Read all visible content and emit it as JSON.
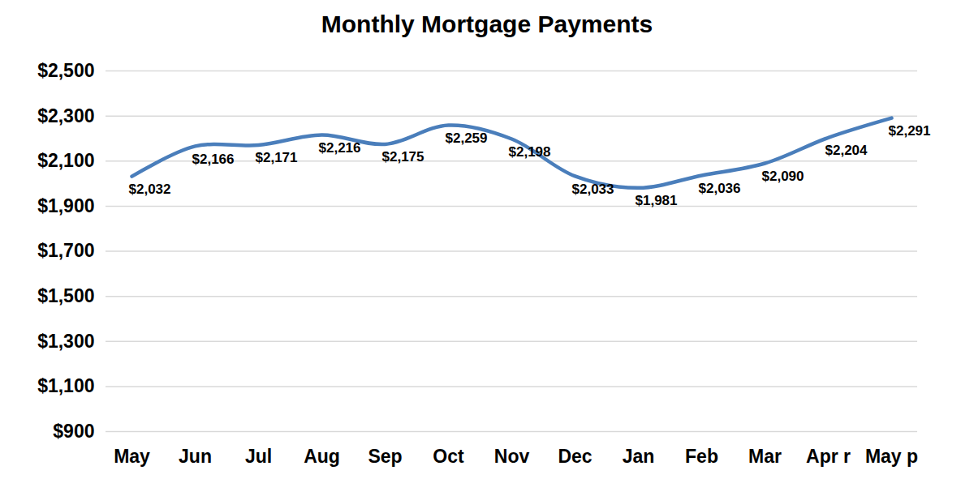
{
  "chart_data": {
    "type": "line",
    "title": "Monthly Mortgage Payments",
    "categories": [
      "May",
      "Jun",
      "Jul",
      "Aug",
      "Sep",
      "Oct",
      "Nov",
      "Dec",
      "Jan",
      "Feb",
      "Mar",
      "Apr r",
      "May p"
    ],
    "values": [
      2032,
      2166,
      2171,
      2216,
      2175,
      2259,
      2198,
      2033,
      1981,
      2036,
      2090,
      2204,
      2291
    ],
    "value_labels": [
      "$2,032",
      "$2,166",
      "$2,171",
      "$2,216",
      "$2,175",
      "$2,259",
      "$2,198",
      "$2,033",
      "$1,981",
      "$2,036",
      "$2,090",
      "$2,204",
      "$2,291"
    ],
    "color": "#4a7ebb",
    "ylim": [
      900,
      2500
    ],
    "yticks": [
      {
        "value": 900,
        "label": "$900"
      },
      {
        "value": 1100,
        "label": "$1,100"
      },
      {
        "value": 1300,
        "label": "$1,300"
      },
      {
        "value": 1500,
        "label": "$1,500"
      },
      {
        "value": 1700,
        "label": "$1,700"
      },
      {
        "value": 1900,
        "label": "$1,900"
      },
      {
        "value": 2100,
        "label": "$2,100"
      },
      {
        "value": 2300,
        "label": "$2,300"
      },
      {
        "value": 2500,
        "label": "$2,500"
      }
    ],
    "grid": true,
    "data_labels": true
  }
}
